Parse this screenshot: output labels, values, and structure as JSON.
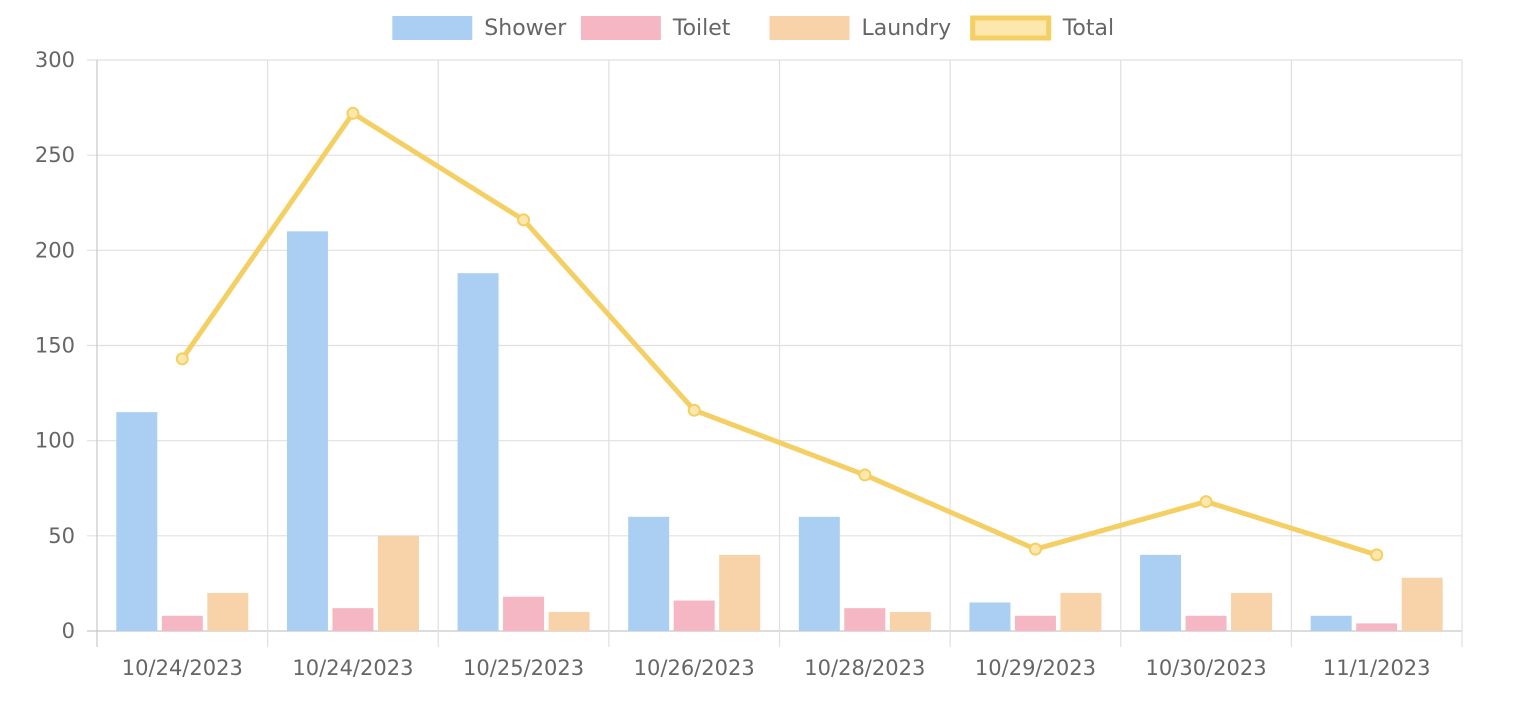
{
  "chart_data": {
    "type": "bar",
    "categories": [
      "10/24/2023",
      "10/24/2023",
      "10/25/2023",
      "10/26/2023",
      "10/28/2023",
      "10/29/2023",
      "10/30/2023",
      "11/1/2023"
    ],
    "series": [
      {
        "name": "Shower",
        "type": "bar",
        "color": "#abcff2",
        "values": [
          115,
          210,
          188,
          60,
          60,
          15,
          40,
          8
        ]
      },
      {
        "name": "Toilet",
        "type": "bar",
        "color": "#f5b7c4",
        "values": [
          8,
          12,
          18,
          16,
          12,
          8,
          8,
          4
        ]
      },
      {
        "name": "Laundry",
        "type": "bar",
        "color": "#f8d2a8",
        "values": [
          20,
          50,
          10,
          40,
          10,
          20,
          20,
          28
        ]
      },
      {
        "name": "Total",
        "type": "line",
        "color": "#f4cf63",
        "fill": "#fce8ad",
        "values": [
          143,
          272,
          216,
          116,
          82,
          43,
          68,
          40
        ]
      }
    ],
    "ylim": [
      0,
      300
    ],
    "yticks": [
      0,
      50,
      100,
      150,
      200,
      250,
      300
    ],
    "grid": true,
    "legend_position": "top-center"
  }
}
